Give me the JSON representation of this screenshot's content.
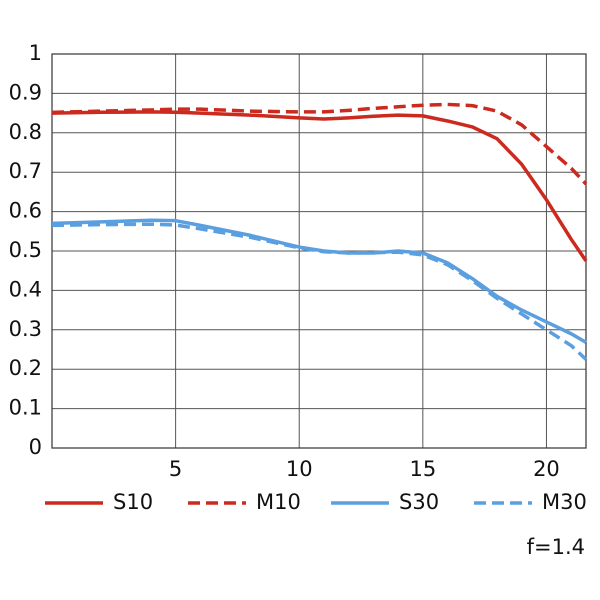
{
  "chart_data": {
    "type": "line",
    "x": [
      0,
      2,
      4,
      5,
      6,
      8,
      10,
      11,
      12,
      13,
      14,
      15,
      16,
      17,
      18,
      19,
      20,
      21,
      21.6
    ],
    "series": [
      {
        "name": "S10",
        "color": "#cc2a1e",
        "dash": false,
        "values": [
          0.85,
          0.852,
          0.853,
          0.852,
          0.85,
          0.845,
          0.838,
          0.835,
          0.838,
          0.842,
          0.845,
          0.843,
          0.83,
          0.815,
          0.785,
          0.72,
          0.63,
          0.53,
          0.475
        ]
      },
      {
        "name": "M10",
        "color": "#cc2a1e",
        "dash": true,
        "values": [
          0.852,
          0.855,
          0.858,
          0.86,
          0.86,
          0.855,
          0.853,
          0.853,
          0.857,
          0.862,
          0.866,
          0.87,
          0.872,
          0.869,
          0.855,
          0.82,
          0.765,
          0.71,
          0.67
        ]
      },
      {
        "name": "S30",
        "color": "#5a9fe0",
        "dash": false,
        "values": [
          0.57,
          0.574,
          0.578,
          0.577,
          0.565,
          0.54,
          0.51,
          0.5,
          0.495,
          0.495,
          0.5,
          0.495,
          0.47,
          0.43,
          0.385,
          0.35,
          0.32,
          0.29,
          0.268
        ]
      },
      {
        "name": "M30",
        "color": "#5a9fe0",
        "dash": true,
        "values": [
          0.565,
          0.567,
          0.568,
          0.566,
          0.556,
          0.535,
          0.508,
          0.498,
          0.495,
          0.496,
          0.497,
          0.49,
          0.465,
          0.425,
          0.38,
          0.34,
          0.3,
          0.26,
          0.225
        ]
      }
    ],
    "xlim": [
      0,
      21.6
    ],
    "xticks": [
      5,
      10,
      15,
      20
    ],
    "ylim": [
      0,
      1
    ],
    "yticks": [
      0,
      0.1,
      0.2,
      0.3,
      0.4,
      0.5,
      0.6,
      0.7,
      0.8,
      0.9,
      1
    ],
    "grid": true,
    "annotation": "f=1.4"
  }
}
